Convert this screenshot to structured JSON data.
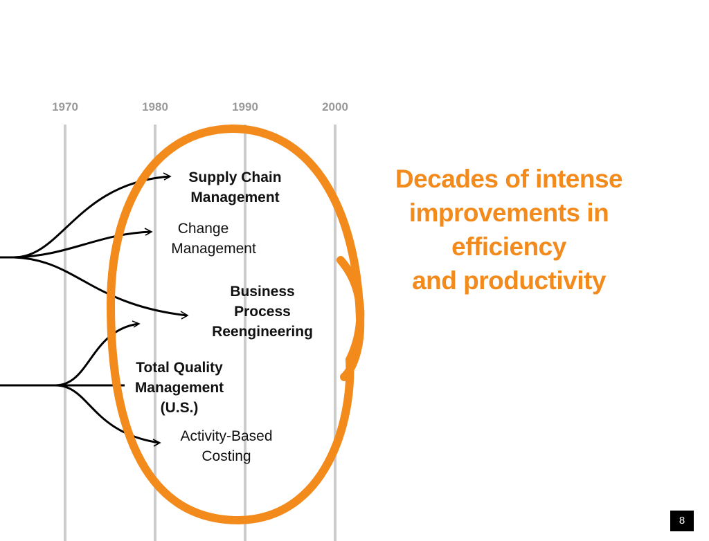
{
  "timeline": {
    "years": [
      "1970",
      "1980",
      "1990",
      "2000"
    ]
  },
  "labels": {
    "supply_chain": [
      "Supply Chain",
      "Management"
    ],
    "change": [
      "Change",
      "Management"
    ],
    "bpr": [
      "Business",
      "Process",
      "Reengineering"
    ],
    "tqm": [
      "Total Quality",
      "Management",
      "(U.S.)"
    ],
    "abc": [
      "Activity-Based",
      "Costing"
    ]
  },
  "headline": [
    "Decades of intense",
    "improvements in",
    "efficiency",
    "and productivity"
  ],
  "page_number": "8",
  "colors": {
    "accent": "#f28a1c",
    "gridline": "#cccccc",
    "year_text": "#999999",
    "branch": "#000000"
  }
}
